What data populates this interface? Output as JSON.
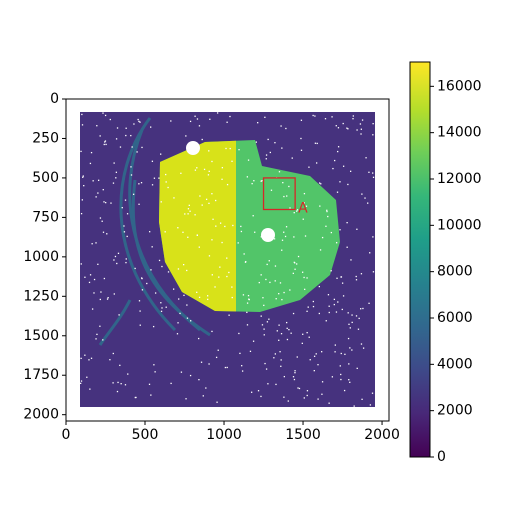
{
  "chart_data": {
    "type": "image",
    "xlim": [
      0,
      2044
    ],
    "ylim": [
      2040,
      0
    ],
    "xticks": [
      0,
      500,
      1000,
      1500,
      2000
    ],
    "yticks": [
      0,
      250,
      500,
      750,
      1000,
      1250,
      1500,
      1750,
      2000
    ],
    "colorbar": {
      "clim": [
        0,
        17050
      ],
      "ticks": [
        0,
        2000,
        4000,
        6000,
        8000,
        10000,
        12000,
        14000,
        16000
      ],
      "colormap": "viridis"
    },
    "annotation": {
      "label": "A",
      "color": "#d62728",
      "box": {
        "x0": 1250,
        "y0": 500,
        "x1": 1450,
        "y1": 700
      }
    }
  }
}
